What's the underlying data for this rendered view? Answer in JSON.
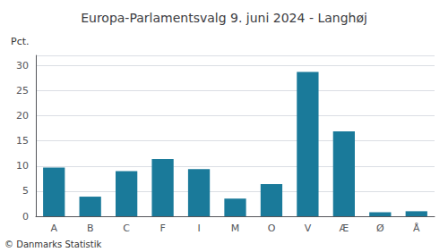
{
  "chart_data": {
    "type": "bar",
    "title": "Europa-Parlamentsvalg 9. juni 2024 - Langhøj",
    "categories": [
      "A",
      "B",
      "C",
      "F",
      "I",
      "M",
      "O",
      "V",
      "Æ",
      "Ø",
      "Å"
    ],
    "values": [
      9.7,
      3.9,
      9.0,
      11.4,
      9.4,
      3.5,
      6.4,
      28.7,
      16.9,
      0.8,
      1.0
    ],
    "color": "#1a7a9a",
    "ylim": [
      0,
      32
    ],
    "yticks": [
      0,
      5,
      10,
      15,
      20,
      25,
      30
    ],
    "ylabel": "Pct.",
    "annotations": [
      "© Danmarks Statistik"
    ],
    "grid": true
  }
}
